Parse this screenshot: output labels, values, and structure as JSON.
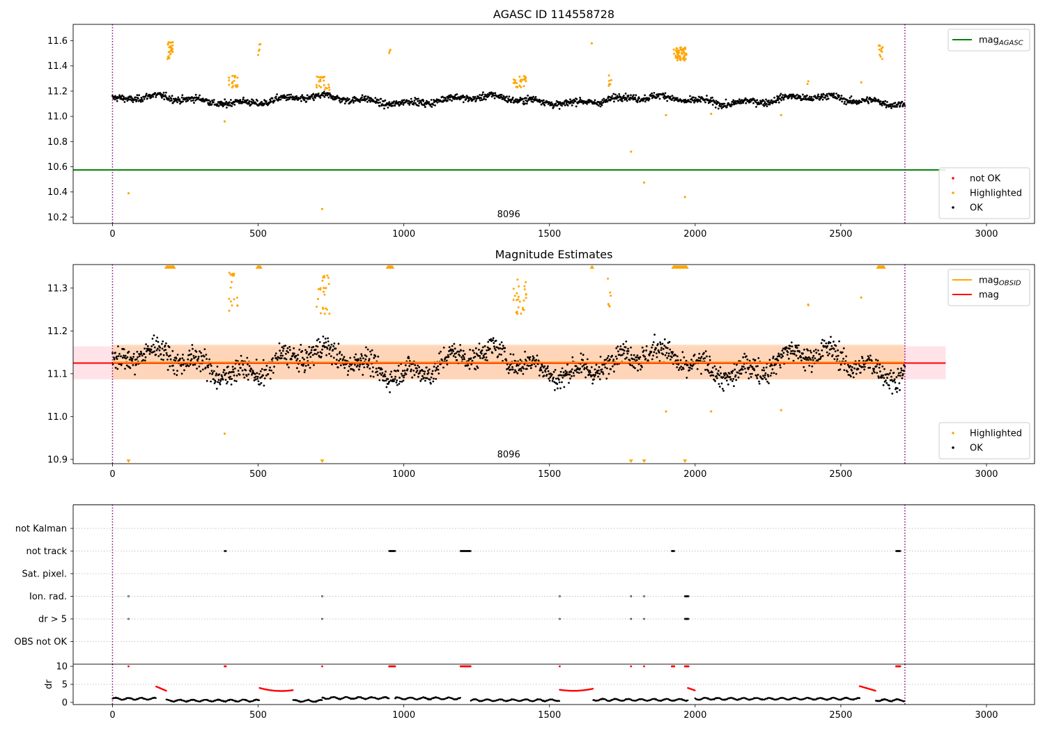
{
  "colors": {
    "ok": "#000000",
    "highlighted": "#ffa500",
    "not_ok": "#ff0000",
    "mag_agasc": "#008000",
    "mag_obsid": "#ffa500",
    "mag": "#ff0000",
    "band_mag": "#ffc0cb",
    "band_obsid": "#ffcc99",
    "obsid_boundary": "#800080"
  },
  "chart_data": [
    {
      "type": "scatter",
      "title": "AGASC ID 114558728",
      "xlabel": "",
      "ylabel": "",
      "xlim": [
        -135,
        3165
      ],
      "ylim": [
        10.15,
        11.73
      ],
      "xticks": [
        0,
        500,
        1000,
        1500,
        2000,
        2500,
        3000
      ],
      "xtick_labels": [
        "0",
        "500",
        "1000",
        "1500",
        "2000",
        "2500",
        "3000"
      ],
      "yticks": [
        10.2,
        10.4,
        10.6,
        10.8,
        11.0,
        11.2,
        11.4,
        11.6
      ],
      "ytick_labels": [
        "10.2",
        "10.4",
        "10.6",
        "10.8",
        "11.0",
        "11.2",
        "11.4",
        "11.6"
      ],
      "obsid_boundaries": [
        0,
        2720
      ],
      "obsid_label": {
        "text": "8096",
        "x": 1360
      },
      "reference_lines": [
        {
          "name": "mag_AGASC",
          "y": 10.575,
          "x0": -135,
          "x1": 2860
        }
      ],
      "baseline": {
        "level": 11.13,
        "scatter": 0.035
      },
      "highlight_clusters": [
        {
          "x0": 188,
          "x1": 210,
          "y0": 11.45,
          "y1": 11.6,
          "n": 28
        },
        {
          "x0": 400,
          "x1": 430,
          "y0": 11.2,
          "y1": 11.34,
          "n": 18
        },
        {
          "x0": 500,
          "x1": 508,
          "y0": 11.48,
          "y1": 11.58,
          "n": 5
        },
        {
          "x0": 700,
          "x1": 745,
          "y0": 11.21,
          "y1": 11.32,
          "n": 24
        },
        {
          "x0": 945,
          "x1": 960,
          "y0": 11.45,
          "y1": 11.53,
          "n": 3
        },
        {
          "x0": 1375,
          "x1": 1420,
          "y0": 11.23,
          "y1": 11.32,
          "n": 26
        },
        {
          "x0": 1700,
          "x1": 1712,
          "y0": 11.24,
          "y1": 11.33,
          "n": 6
        },
        {
          "x0": 1925,
          "x1": 1970,
          "y0": 11.44,
          "y1": 11.55,
          "n": 55
        },
        {
          "x0": 2385,
          "x1": 2392,
          "y0": 11.25,
          "y1": 11.28,
          "n": 2
        },
        {
          "x0": 2630,
          "x1": 2645,
          "y0": 11.43,
          "y1": 11.57,
          "n": 12
        }
      ],
      "highlight_points": [
        {
          "x": 55,
          "y": 10.39
        },
        {
          "x": 385,
          "y": 10.96
        },
        {
          "x": 720,
          "y": 10.265
        },
        {
          "x": 1645,
          "y": 11.58
        },
        {
          "x": 1780,
          "y": 10.72
        },
        {
          "x": 1825,
          "y": 10.475
        },
        {
          "x": 1900,
          "y": 11.01
        },
        {
          "x": 1965,
          "y": 10.36
        },
        {
          "x": 2055,
          "y": 11.02
        },
        {
          "x": 2295,
          "y": 11.01
        },
        {
          "x": 2570,
          "y": 11.27
        }
      ],
      "legends": [
        {
          "position": "top-right",
          "entries": [
            {
              "kind": "line",
              "color_key": "mag_agasc",
              "label": "mag",
              "sub": "AGASC"
            }
          ]
        },
        {
          "position": "bottom-right",
          "entries": [
            {
              "kind": "dot",
              "color_key": "not_ok",
              "label": "not OK"
            },
            {
              "kind": "dot",
              "color_key": "highlighted",
              "label": "Highlighted"
            },
            {
              "kind": "dot",
              "color_key": "ok",
              "label": "OK"
            }
          ]
        }
      ]
    },
    {
      "type": "scatter",
      "title": "Magnitude Estimates",
      "xlabel": "",
      "ylabel": "",
      "xlim": [
        -135,
        3165
      ],
      "ylim": [
        10.89,
        11.355
      ],
      "xticks": [
        0,
        500,
        1000,
        1500,
        2000,
        2500,
        3000
      ],
      "xtick_labels": [
        "0",
        "500",
        "1000",
        "1500",
        "2000",
        "2500",
        "3000"
      ],
      "yticks": [
        10.9,
        11.0,
        11.1,
        11.2,
        11.3
      ],
      "ytick_labels": [
        "10.9",
        "11.0",
        "11.1",
        "11.2",
        "11.3"
      ],
      "obsid_boundaries": [
        0,
        2720
      ],
      "obsid_label": {
        "text": "8096",
        "x": 1360
      },
      "bands": [
        {
          "name": "mag",
          "y0": 11.087,
          "y1": 11.164,
          "x0": -135,
          "x1": 2860,
          "color_key": "band_mag"
        },
        {
          "name": "mag_OBSID",
          "y0": 11.087,
          "y1": 11.168,
          "x0": 0,
          "x1": 2720,
          "color_key": "band_obsid"
        }
      ],
      "reference_lines": [
        {
          "name": "mag",
          "y": 11.125,
          "x0": -135,
          "x1": 2860,
          "color_key": "mag"
        },
        {
          "name": "mag_OBSID",
          "y": 11.127,
          "x0": 0,
          "x1": 2720,
          "color_key": "mag_obsid"
        }
      ],
      "baseline": {
        "level": 11.125,
        "scatter": 0.035
      },
      "highlight_clusters": [
        {
          "x0": 400,
          "x1": 430,
          "y0": 11.24,
          "y1": 11.34,
          "n": 18
        },
        {
          "x0": 700,
          "x1": 745,
          "y0": 11.24,
          "y1": 11.33,
          "n": 24
        },
        {
          "x0": 1375,
          "x1": 1420,
          "y0": 11.24,
          "y1": 11.325,
          "n": 26
        },
        {
          "x0": 1700,
          "x1": 1712,
          "y0": 11.24,
          "y1": 11.34,
          "n": 6
        },
        {
          "x0": 2385,
          "x1": 2392,
          "y0": 11.255,
          "y1": 11.275,
          "n": 2
        }
      ],
      "highlight_points": [
        {
          "x": 385,
          "y": 10.96
        },
        {
          "x": 1900,
          "y": 11.012
        },
        {
          "x": 2055,
          "y": 11.012
        },
        {
          "x": 2295,
          "y": 11.015
        },
        {
          "x": 2570,
          "y": 11.278
        }
      ],
      "clipped_above": [
        {
          "x0": 185,
          "x1": 212
        },
        {
          "x0": 498,
          "x1": 508
        },
        {
          "x0": 945,
          "x1": 962
        },
        {
          "x0": 1645,
          "x1": 1648
        },
        {
          "x0": 1925,
          "x1": 1972
        },
        {
          "x0": 2628,
          "x1": 2648
        }
      ],
      "clipped_below": [
        55,
        720,
        1780,
        1825,
        1965
      ],
      "legends": [
        {
          "position": "top-right",
          "entries": [
            {
              "kind": "line",
              "color_key": "mag_obsid",
              "label": "mag",
              "sub": "OBSID"
            },
            {
              "kind": "line",
              "color_key": "mag",
              "label": "mag"
            }
          ]
        },
        {
          "position": "bottom-right",
          "entries": [
            {
              "kind": "dot",
              "color_key": "highlighted",
              "label": "Highlighted"
            },
            {
              "kind": "dot",
              "color_key": "ok",
              "label": "OK"
            }
          ]
        }
      ]
    },
    {
      "type": "scatter",
      "title": "",
      "subtype": "flags",
      "xlim": [
        -135,
        3165
      ],
      "categories": [
        "not Kalman",
        "not track",
        "Sat. pixel.",
        "Ion. rad.",
        "dr > 5",
        "OBS not OK"
      ],
      "flag_marks": {
        "not Kalman": [],
        "not track": [
          [
            385,
            390
          ],
          [
            950,
            970
          ],
          [
            1195,
            1230
          ],
          [
            1920,
            1928
          ],
          [
            2690,
            2705
          ]
        ],
        "Sat. pixel.": [],
        "Ion. rad.": [
          [
            55,
            55
          ],
          [
            720,
            720
          ],
          [
            1535,
            1535
          ],
          [
            1780,
            1780
          ],
          [
            1825,
            1825
          ],
          [
            1965,
            1978
          ]
        ],
        "dr > 5": [
          [
            55,
            55
          ],
          [
            720,
            720
          ],
          [
            1535,
            1535
          ],
          [
            1780,
            1780
          ],
          [
            1825,
            1825
          ],
          [
            1965,
            1978
          ]
        ],
        "OBS not OK": []
      },
      "obsid_boundaries": [
        0,
        2720
      ]
    },
    {
      "type": "scatter",
      "title": "",
      "xlabel": "",
      "ylabel": "dr",
      "xlim": [
        -135,
        3165
      ],
      "ylim": [
        -0.6,
        10.6
      ],
      "xticks": [
        0,
        500,
        1000,
        1500,
        2000,
        2500,
        3000
      ],
      "xtick_labels": [
        "0",
        "500",
        "1000",
        "1500",
        "2000",
        "2500",
        "3000"
      ],
      "yticks": [
        0,
        5,
        10
      ],
      "ytick_labels": [
        "0",
        "5",
        "10"
      ],
      "obsid_boundaries": [
        0,
        2720
      ],
      "bad_segments": [
        {
          "x0": 150,
          "x1": 185,
          "start": 4.4,
          "end": 3.2
        },
        {
          "x0": 505,
          "x1": 620,
          "start": 4.0,
          "end": 3.4,
          "dip": 2.7
        },
        {
          "x0": 1535,
          "x1": 1650,
          "start": 3.5,
          "end": 3.8,
          "dip": 2.8
        },
        {
          "x0": 1975,
          "x1": 2000,
          "start": 4.0,
          "end": 3.3
        },
        {
          "x0": 2565,
          "x1": 2620,
          "start": 4.5,
          "end": 3.2
        }
      ],
      "bad_points_at_10": [
        [
          55,
          55
        ],
        [
          385,
          390
        ],
        [
          720,
          720
        ],
        [
          950,
          970
        ],
        [
          1195,
          1230
        ],
        [
          1535,
          1535
        ],
        [
          1780,
          1780
        ],
        [
          1825,
          1825
        ],
        [
          1920,
          1928
        ],
        [
          1965,
          1978
        ],
        [
          2690,
          2705
        ]
      ],
      "good_levels": [
        {
          "x0": 0,
          "x1": 150,
          "y": 1.0
        },
        {
          "x0": 185,
          "x1": 505,
          "y": 0.5
        },
        {
          "x0": 620,
          "x1": 720,
          "y": 0.4
        },
        {
          "x0": 720,
          "x1": 950,
          "y": 1.2
        },
        {
          "x0": 970,
          "x1": 1195,
          "y": 1.1
        },
        {
          "x0": 1230,
          "x1": 1535,
          "y": 0.6
        },
        {
          "x0": 1650,
          "x1": 1975,
          "y": 0.7
        },
        {
          "x0": 2000,
          "x1": 2565,
          "y": 1.0
        },
        {
          "x0": 2620,
          "x1": 2720,
          "y": 0.6
        }
      ]
    }
  ]
}
